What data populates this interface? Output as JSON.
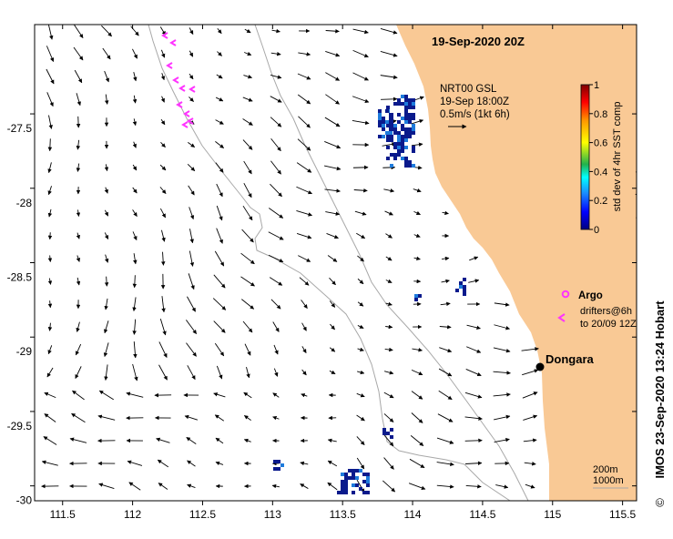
{
  "map": {
    "title": "19-Sep-2020 20Z",
    "axes": {
      "lon_range": [
        111.3,
        115.6
      ],
      "lat_range": [
        -30.1,
        -26.9
      ],
      "lon_ticks": [
        "111.5",
        "112",
        "112.5",
        "113",
        "113.5",
        "114",
        "114.5",
        "115",
        "115.5"
      ],
      "lat_ticks": [
        "-27.5",
        "-28",
        "-28.5",
        "-29",
        "-29.5",
        "-30"
      ],
      "lon_values": [
        111.5,
        112,
        112.5,
        113,
        113.5,
        114,
        114.5,
        115,
        115.5
      ],
      "lat_values": [
        -27.5,
        -28,
        -28.5,
        -29,
        -29.5,
        -30
      ]
    },
    "vector_legend": {
      "line1": "NRT00 GSL",
      "line2": "19-Sep 18:00Z",
      "line3": "0.5m/s (1kt 6h)"
    },
    "colorbar": {
      "label": "std dev of 4hr SST comp",
      "ticks": [
        "1",
        "0.8",
        "0.6",
        "0.4",
        "0.2",
        "0"
      ],
      "tick_values": [
        1,
        0.8,
        0.6,
        0.4,
        0.2,
        0
      ]
    },
    "argo_legend": {
      "argo_label": "Argo",
      "drifters_line1": "drifters@6h",
      "drifters_line2": "to 20/09 12Z"
    },
    "place": {
      "name": "Dongara",
      "lon": 114.93,
      "lat": -29.25
    },
    "isobath_legend": {
      "line1": "200m",
      "line2": "1000m"
    },
    "credit": "IMOS 23-Sep-2020 13:24 Hobart",
    "copyright": "©"
  },
  "colors": {
    "land": "#f9c995",
    "ocean": "#ffffff",
    "isobath": "#a8a8a8",
    "drifter": "#ff33ff",
    "sst_low": "#0a1a8c",
    "sst_mid": "#1e7bdc"
  }
}
